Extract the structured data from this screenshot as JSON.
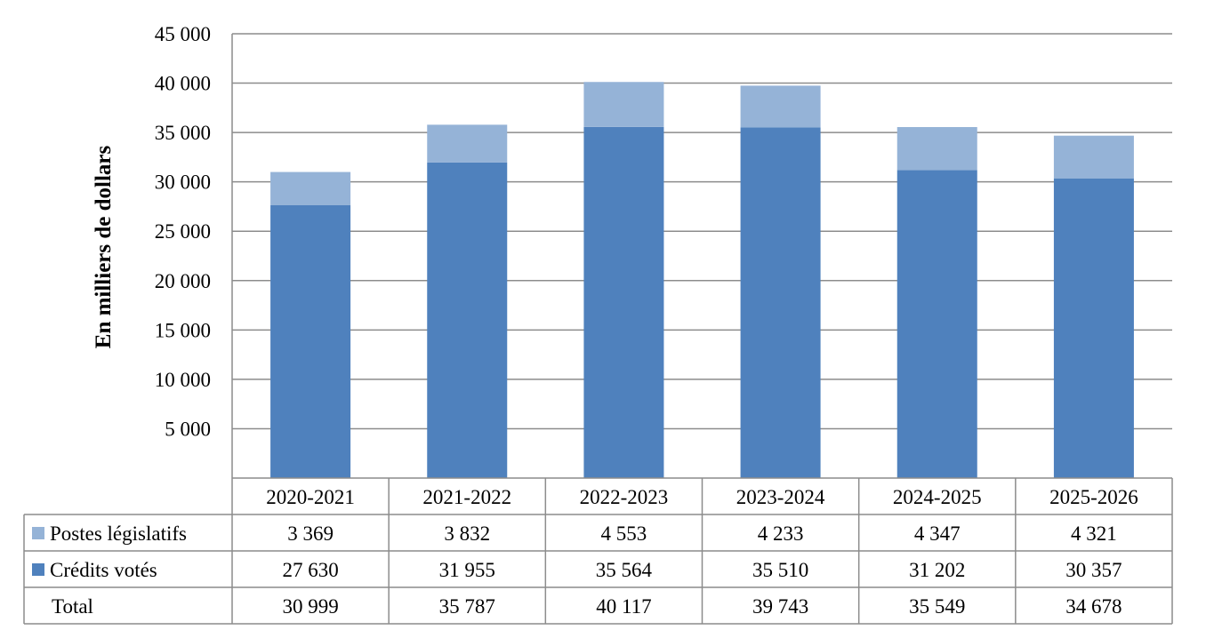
{
  "chart_data": {
    "type": "bar",
    "stacked": true,
    "title": "",
    "xlabel": "",
    "ylabel": "En milliers  de dollars",
    "ylim": [
      0,
      45000
    ],
    "yticks": [
      5000,
      10000,
      15000,
      20000,
      25000,
      30000,
      35000,
      40000,
      45000
    ],
    "ytick_labels": [
      "5 000",
      "10 000",
      "15 000",
      "20 000",
      "25 000",
      "30 000",
      "35 000",
      "40 000",
      "45 000"
    ],
    "grid": true,
    "legend": "data-table-left",
    "categories": [
      "2020-2021",
      "2021-2022",
      "2022-2023",
      "2023-2024",
      "2024-2025",
      "2025-2026"
    ],
    "series": [
      {
        "name": "Crédits votés",
        "color": "#4f81bd",
        "values": [
          27630,
          31955,
          35564,
          35510,
          31202,
          30357
        ],
        "labels": [
          "27 630",
          "31 955",
          "35 564",
          "35 510",
          "31 202",
          "30 357"
        ]
      },
      {
        "name": "Postes législatifs",
        "color": "#95b3d7",
        "values": [
          3369,
          3832,
          4553,
          4233,
          4347,
          4321
        ],
        "labels": [
          "3 369",
          "3 832",
          "4 553",
          "4 233",
          "4 347",
          "4 321"
        ]
      }
    ],
    "total": {
      "name": "Total",
      "values": [
        30999,
        35787,
        40117,
        39743,
        35549,
        34678
      ],
      "labels": [
        "30 999",
        "35 787",
        "40 117",
        "39 743",
        "35 549",
        "34 678"
      ]
    },
    "table_row_order": [
      "Postes législatifs",
      "Crédits votés",
      "Total"
    ]
  }
}
